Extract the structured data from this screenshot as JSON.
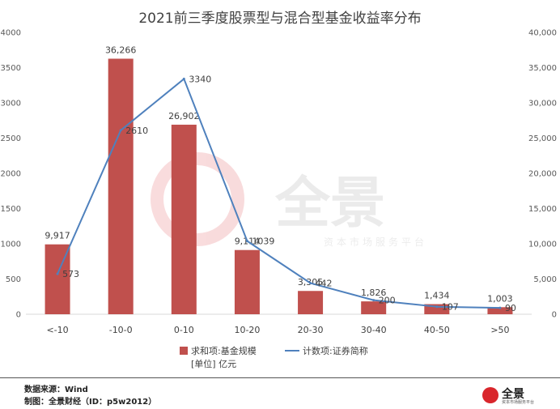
{
  "footer": {
    "source": "数据来源：Wind",
    "maker": "制图：全景财经（ID：p5w2012）"
  },
  "watermark": {
    "name": "全景",
    "tagline": "资本市场服务平台"
  },
  "logo": {
    "name": "全景",
    "tagline": "资本市场服务平台"
  },
  "chart_data": {
    "type": "bar",
    "title": "2021前三季度股票型与混合型基金收益率分布",
    "categories": [
      "<-10",
      "-10-0",
      "0-10",
      "10-20",
      "20-30",
      "30-40",
      "40-50",
      ">50"
    ],
    "series": [
      {
        "name": "求和项:基金规模[单位] 亿元",
        "legend_line1": "求和项:基金规模",
        "legend_line2": "[单位] 亿元",
        "type": "bar",
        "axis": "right",
        "color": "#c0504d",
        "values": [
          9917,
          36266,
          26902,
          9114,
          3305,
          1826,
          1434,
          1003
        ],
        "labels": [
          "9,917",
          "36,266",
          "26,902",
          "9,114",
          "3,305",
          "1,826",
          "1,434",
          "1,003"
        ]
      },
      {
        "name": "计数项:证券简称",
        "type": "line",
        "axis": "left",
        "color": "#4f81bd",
        "values": [
          573,
          2610,
          3340,
          1039,
          442,
          200,
          107,
          90
        ],
        "labels": [
          "573",
          "2610",
          "3340",
          "1039",
          "442",
          "200",
          "107",
          "90"
        ]
      }
    ],
    "y_left": {
      "min": 0,
      "max": 4000,
      "step": 500,
      "ticks": [
        "0",
        "500",
        "1000",
        "1500",
        "2000",
        "2500",
        "3000",
        "3500",
        "4000"
      ]
    },
    "y_right": {
      "min": 0,
      "max": 40000,
      "step": 5000,
      "ticks": [
        "0",
        "5,000",
        "10,000",
        "15,000",
        "20,000",
        "25,000",
        "30,000",
        "35,000",
        "40,000"
      ]
    },
    "legend_position": "bottom",
    "grid": false
  }
}
